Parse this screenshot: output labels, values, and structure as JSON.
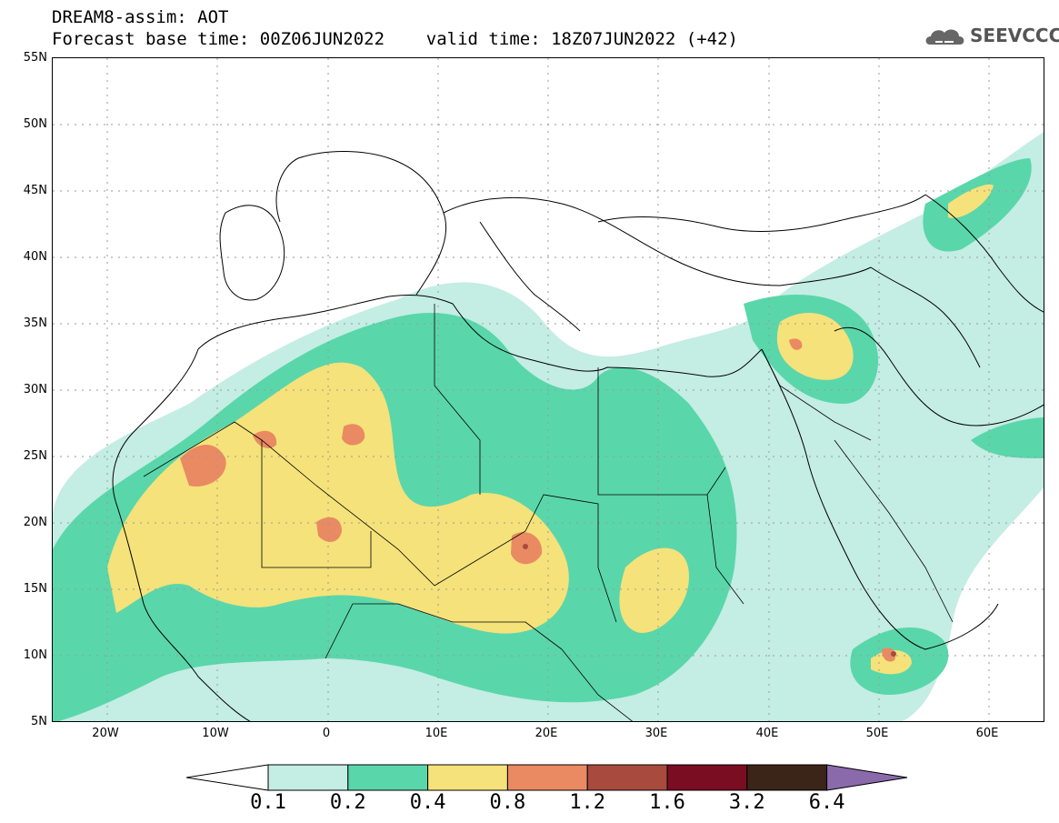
{
  "header": {
    "line1": "DREAM8-assim: AOT",
    "line2": "Forecast base time: 00Z06JUN2022    valid time: 18Z07JUN2022 (+42)"
  },
  "logo": {
    "text": "SEEVCCC",
    "icon": "cloud-icon"
  },
  "axes": {
    "lat_labels": [
      "55N",
      "50N",
      "45N",
      "40N",
      "35N",
      "30N",
      "25N",
      "20N",
      "15N",
      "10N",
      "5N"
    ],
    "lon_labels": [
      "20W",
      "10W",
      "0",
      "10E",
      "20E",
      "30E",
      "40E",
      "50E",
      "60E"
    ],
    "lat_range": [
      5,
      55
    ],
    "lon_range": [
      -25,
      65
    ]
  },
  "colorbar": {
    "labels": [
      "0.1",
      "0.2",
      "0.4",
      "0.8",
      "1.2",
      "1.6",
      "3.2",
      "6.4"
    ],
    "colors": [
      "#ffffff",
      "#c4ede4",
      "#5ad6ab",
      "#f5e27a",
      "#e98a63",
      "#a84a3e",
      "#7a0d22",
      "#3b2418",
      "#8a6aab"
    ]
  }
}
